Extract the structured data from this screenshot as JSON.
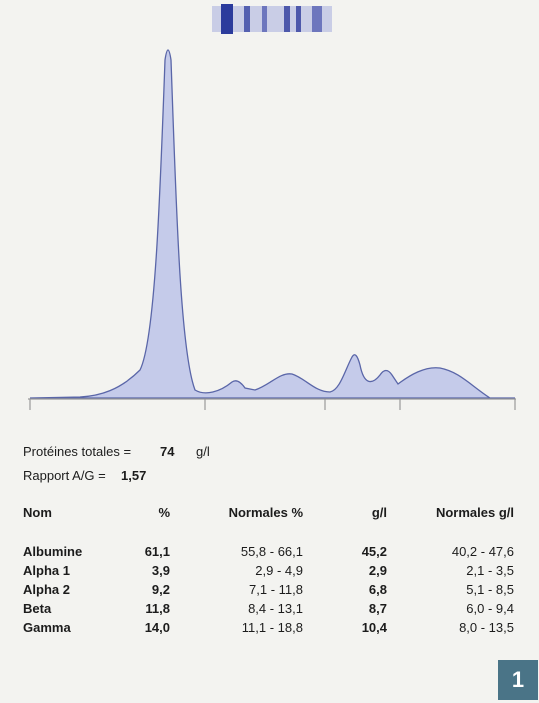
{
  "summary": {
    "total_label": "Protéines totales =",
    "total_value": "74",
    "total_unit": "g/l",
    "ratio_label": "Rapport A/G =",
    "ratio_value": "1,57"
  },
  "table": {
    "header": [
      "Nom",
      "%",
      "Normales %",
      "g/l",
      "Normales g/l"
    ],
    "rows": [
      [
        "Albumine",
        "61,1",
        "55,8 - 66,1",
        "45,2",
        "40,2 - 47,6"
      ],
      [
        "Alpha 1",
        "3,9",
        "2,9 - 4,9",
        "2,9",
        "2,1 - 3,5"
      ],
      [
        "Alpha 2",
        "9,2",
        "7,1 - 11,8",
        "6,8",
        "5,1 - 8,5"
      ],
      [
        "Beta",
        "11,8",
        "8,4 - 13,1",
        "8,7",
        "6,0 - 9,4"
      ],
      [
        "Gamma",
        "14,0",
        "11,1 - 18,8",
        "10,4",
        "8,0 - 13,5"
      ]
    ]
  },
  "badge": "1"
}
